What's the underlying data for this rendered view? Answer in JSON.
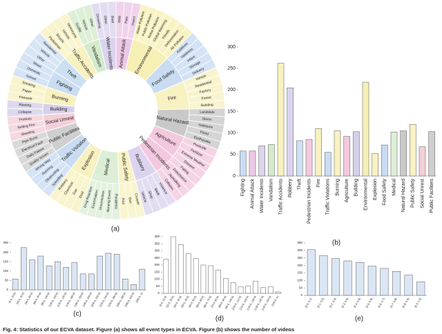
{
  "chart_data": [
    {
      "type": "sunburst",
      "caption": "(a)",
      "categories": [
        "Animal Attack",
        "Environmental",
        "Food Safety",
        "Fire",
        "Natural Hazard",
        "Agriculture",
        "Pedestrian Incidents",
        "Robbery",
        "Public Safety",
        "Medical",
        "Explosion",
        "Traffic Violation",
        "Public Facilities",
        "Social Unrest",
        "Building",
        "Burning",
        "Fighting",
        "Theft",
        "Traffic Accidents",
        "Vandalism",
        "Water Incidents"
      ],
      "colors": [
        "#ecc8e6",
        "#f7f0b4",
        "#c9dcf2",
        "#f8f1c2",
        "#c9c9c9",
        "#f3c9dd",
        "#f3c9e0",
        "#dcd4ee",
        "#f8f2c4",
        "#dcefd6",
        "#f8f1c0",
        "#c9dcf2",
        "#cfcfcf",
        "#f3cfd8",
        "#d6d0ea",
        "#f8f1c0",
        "#c9dcf2",
        "#cde0f2",
        "#f8f1c0",
        "#d4ebcc",
        "#dcd4ee"
      ],
      "children": [
        [
          "Wild",
          "Pets",
          "Insect"
        ],
        [
          "Water Pollution",
          "Public Pollution",
          "Noise Pollution",
          "Global Warming",
          "Floods",
          "Deforestation",
          "Air Pollution"
        ],
        [
          "Additives",
          "Validness",
          "Infant",
          "Storage",
          "Delivery"
        ],
        [
          "Vehicle",
          "Residential",
          "Factory",
          "Forest",
          "Building"
        ],
        [
          "Landslide",
          "Storm",
          "Hailstone",
          "Flood",
          "Earthquake"
        ],
        [
          "Pesticide",
          "Fertilizer",
          "Extreme Weather",
          "Disease"
        ],
        [
          "Falling",
          "Disturbance",
          "Jaywalking",
          "Collision"
        ],
        [
          "Violence",
          "Bank",
          "Shop",
          "Vehicle"
        ],
        [
          "Crowds",
          "Gun",
          "Riot"
        ],
        [
          "Pandemic",
          "Nursing Event",
          "Unconscious",
          "Examination",
          "Drug Reaction"
        ],
        [
          "Dust",
          "Gas",
          "Chemical",
          "Robbery"
        ],
        [
          "Speeding",
          "Obstructing",
          "Running",
          "Wrong Way"
        ],
        [
          "Quality Issues",
          "Daily Failure",
          "Electrical Fault",
          "Pipe Burst"
        ],
        [
          "Shooting",
          "Setting Fire",
          "Protests"
        ],
        [
          "Collapse",
          "Blasting"
        ],
        [
          "Firework",
          "Paper",
          "Smoking"
        ],
        [
          "School",
          "Domestic",
          "Street"
        ],
        [
          "Other",
          "Vehicle",
          "Residential"
        ],
        [
          "Pedestrian",
          "Bicycle",
          "Vehicle",
          "Motorcycle"
        ],
        [
          "Graffiti",
          "Vehicle",
          "Other"
        ],
        [
          "Drowning",
          "Other",
          "Boat"
        ]
      ]
    },
    {
      "type": "bar",
      "caption": "(b)",
      "categories": [
        "Fighting",
        "Animal Attack",
        "Water Incidents",
        "Vandalism",
        "Traffic Accidents",
        "Robbery",
        "Theft",
        "Pedestrian Incidents",
        "Fire",
        "Traffic Violations",
        "Burning",
        "Agriculture",
        "Building",
        "Environmental",
        "Explosion",
        "Food Safety",
        "Medical",
        "Natural Hazard",
        "Public Safety",
        "Social Unrest",
        "Public Facilities"
      ],
      "values": [
        58,
        58,
        70,
        73,
        262,
        205,
        82,
        85,
        110,
        55,
        105,
        92,
        103,
        218,
        52,
        72,
        102,
        105,
        120,
        68,
        103
      ],
      "colors": [
        "#c9dcf2",
        "#ecc8e6",
        "#dcd4ee",
        "#d4ebcc",
        "#f8f1c0",
        "#dcd4ee",
        "#cde0f2",
        "#f3c9e0",
        "#f8f1c2",
        "#c9dcf2",
        "#f8f1c0",
        "#f3c9dd",
        "#d6d0ea",
        "#f7f0b4",
        "#f8f1c0",
        "#c9dcf2",
        "#dcefd6",
        "#c9c9c9",
        "#f8f2c4",
        "#f3cfd8",
        "#cfcfcf"
      ],
      "ylim": [
        0,
        300
      ],
      "yticks": [
        0,
        50,
        100,
        150,
        200,
        250,
        300
      ]
    },
    {
      "type": "bar",
      "caption": "(c)",
      "color": "#dbe6f5",
      "categories": [
        "[0.0, 20.0)",
        "[20.0, 40.0)",
        "[40.0, 60.0)",
        "[60.0, 80.0)",
        "[80.0, 100.0)",
        "[100.0, 120.0)",
        "[120.0, 140.0)",
        "[140.0, 160.0)",
        "[160.0, 180.0)",
        "[180.0, 200.0)",
        "[200.0, 220.0)",
        "[220.0, 240.0)",
        "[240.0, 260.0)",
        "[260.0, 280.0)",
        "[280.0, 300.0)",
        "[300.0, ∞)"
      ],
      "values": [
        58,
        225,
        160,
        180,
        128,
        150,
        120,
        145,
        85,
        85,
        180,
        195,
        190,
        58,
        28,
        110
      ],
      "ylim": [
        0,
        250
      ],
      "yticks": [
        0,
        50,
        100,
        150,
        200,
        250
      ]
    },
    {
      "type": "bar",
      "caption": "(d)",
      "color": "#ffffff",
      "categories": [
        "[0.0, 10.0)",
        "[10.0, 20.0)",
        "[20.0, 30.0)",
        "[30.0, 40.0)",
        "[40.0, 50.0)",
        "[50.0, 60.0)",
        "[60.0, 70.0)",
        "[70.0, 80.0)",
        "[80.0, 90.0)",
        "[90.0, 100.0)",
        "[100.0, 110.0)",
        "[110.0, 120.0)",
        "[120.0, 130.0)",
        "[130.0, 140.0)",
        "[140.0, 150.0)",
        "[150.0, ∞)"
      ],
      "values": [
        240,
        400,
        345,
        280,
        245,
        200,
        195,
        165,
        105,
        75,
        45,
        50,
        85,
        40,
        45,
        10
      ],
      "ylim": [
        0,
        400
      ],
      "yticks": [
        0,
        50,
        100,
        150,
        200,
        250,
        300,
        350,
        400
      ]
    },
    {
      "type": "bar",
      "caption": "(e)",
      "color": "#dbe6f5",
      "categories": [
        "[0.0, 0.1)",
        "[0.1, 0.2)",
        "[0.2, 0.3)",
        "[0.3, 0.4)",
        "[0.4, 0.5)",
        "[0.5, 0.6)",
        "[0.6, 0.7)",
        "[0.7, 0.8)",
        "[0.8, 0.9)",
        "[0.9, 1.0]"
      ],
      "values": [
        305,
        265,
        245,
        230,
        220,
        195,
        180,
        160,
        135,
        90
      ],
      "ylim": [
        0,
        350
      ],
      "yticks": [
        0,
        50,
        100,
        150,
        200,
        250,
        300,
        350
      ]
    }
  ],
  "figure_caption": "Fig. 4: Statistics of our ECVA dataset. Figure (a) shows all event types in ECVA. Figure (b) shows the number of videos"
}
